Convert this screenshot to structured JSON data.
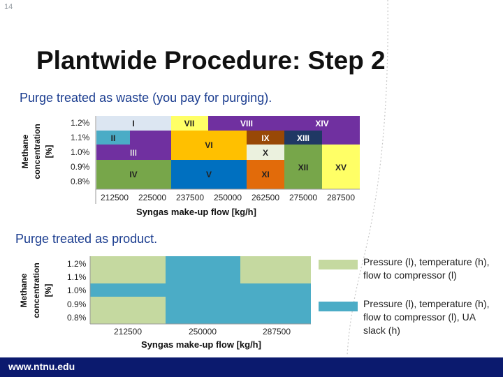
{
  "slide_number": "14",
  "title": "Plantwide Procedure: Step 2",
  "subtitle_waste": "Purge treated as waste (you pay for purging).",
  "subtitle_product": "Purge treated as product.",
  "chart1": {
    "ylabel_line1": "Methane",
    "ylabel_line2": "concentration",
    "ylabel_line3": "[%]",
    "y_ticks": [
      "1.2%",
      "1.1%",
      "1.0%",
      "0.9%",
      "0.8%"
    ],
    "x_ticks": [
      "212500",
      "225000",
      "237500",
      "250000",
      "262500",
      "275000",
      "287500"
    ],
    "xlabel": "Syngas make-up flow [kg/h]",
    "regions": [
      "I",
      "II",
      "III",
      "IV",
      "V",
      "VI",
      "VII",
      "VIII",
      "IX",
      "X",
      "XI",
      "XII",
      "XIII",
      "XIV",
      "XV"
    ]
  },
  "chart2": {
    "ylabel_line1": "Methane",
    "ylabel_line2": "concentration",
    "ylabel_line3": "[%]",
    "y_ticks": [
      "1.2%",
      "1.1%",
      "1.0%",
      "0.9%",
      "0.8%"
    ],
    "x_ticks": [
      "212500",
      "250000",
      "287500"
    ],
    "xlabel": "Syngas make-up flow [kg/h]"
  },
  "legend": [
    {
      "text": "Pressure (l), temperature (h), flow to compressor (l)",
      "color": "#c5d9a0"
    },
    {
      "text": "Pressure (l), temperature (h), flow to compressor (l), UA slack (h)",
      "color": "#4bacc6"
    }
  ],
  "colors": {
    "green_light": "#c5d9a0",
    "teal": "#4bacc6",
    "footer": "#0b1a6e",
    "subtitle": "#1a3c8f"
  },
  "footer_url": "www.ntnu.edu"
}
